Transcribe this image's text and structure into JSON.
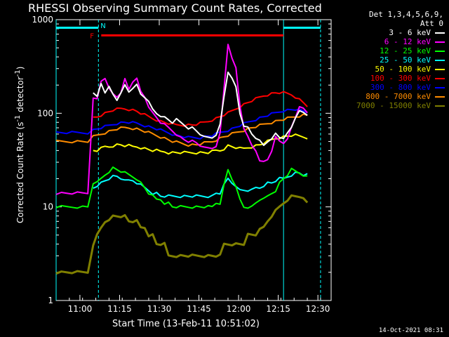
{
  "chart_data": {
    "type": "line",
    "title": "RHESSI Observing Summary Count Rates, Corrected",
    "xlabel": "Start Time (13-Feb-11 10:51:02)",
    "ylabel": "Corrected Count Rate (s",
    "ylabel_sup1": "-1",
    "ylabel_mid": " detector",
    "ylabel_sup2": "-1",
    "ylabel_end": ")",
    "yscale": "log",
    "ylim": [
      1,
      1000
    ],
    "y_ticks": [
      "1",
      "10",
      "100",
      "1000"
    ],
    "x_ticks": [
      "11:00",
      "11:15",
      "11:30",
      "11:45",
      "12:00",
      "12:15",
      "12:30"
    ],
    "x_tick_minutes": [
      9,
      24,
      39,
      54,
      69,
      84,
      99
    ],
    "xlim_minutes": [
      0,
      104
    ],
    "legend_header": "Det 1,3,4,5,6,9,",
    "legend_att": "Att 0",
    "flag_labels": {
      "f": "F",
      "n": "N"
    },
    "series": [
      {
        "name": "3 - 6 keV",
        "color": "#ffffff",
        "values": [
          null,
          null,
          null,
          null,
          null,
          null,
          null,
          160,
          150,
          210,
          170,
          190,
          160,
          140,
          160,
          200,
          170,
          190,
          200,
          160,
          150,
          130,
          110,
          100,
          95,
          90,
          85,
          80,
          85,
          80,
          75,
          70,
          70,
          65,
          60,
          55,
          55,
          55,
          60,
          75,
          150,
          280,
          230,
          190,
          100,
          75,
          70,
          60,
          55,
          50,
          45,
          50,
          55,
          60,
          55,
          55,
          60,
          70,
          90,
          110,
          100,
          95
        ]
      },
      {
        "name": "6 - 12 keV",
        "color": "#ff00ff",
        "values": [
          14,
          14,
          14,
          14,
          14,
          14,
          14,
          150,
          140,
          220,
          240,
          180,
          160,
          150,
          170,
          230,
          180,
          220,
          230,
          170,
          150,
          120,
          100,
          90,
          80,
          75,
          70,
          65,
          60,
          55,
          52,
          50,
          50,
          48,
          45,
          45,
          42,
          42,
          45,
          60,
          180,
          550,
          400,
          300,
          120,
          70,
          55,
          45,
          40,
          32,
          30,
          32,
          40,
          55,
          50,
          48,
          55,
          70,
          90,
          120,
          110,
          100
        ]
      },
      {
        "name": "12 - 25 keV",
        "color": "#00ff00",
        "values": [
          10,
          10,
          10,
          10,
          10,
          10,
          10,
          18,
          18,
          20,
          22,
          24,
          26,
          25,
          24,
          23,
          22,
          21,
          20,
          18,
          16,
          14,
          13,
          12,
          12,
          11,
          11,
          10,
          10,
          10,
          10,
          10,
          10,
          10,
          10,
          10,
          10,
          10,
          11,
          11,
          17,
          25,
          20,
          16,
          12,
          10,
          10,
          10,
          11,
          12,
          12,
          13,
          14,
          15,
          18,
          20,
          22,
          25,
          24,
          23,
          22,
          21
        ]
      },
      {
        "name": "25 - 50 keV",
        "color": "#00ffff",
        "values": [
          null,
          null,
          null,
          null,
          null,
          null,
          null,
          16,
          17,
          18,
          19,
          20,
          21,
          21,
          20,
          20,
          19,
          19,
          18,
          17,
          16,
          15,
          14,
          14,
          13,
          13,
          13,
          13,
          13,
          13,
          13,
          13,
          13,
          13,
          13,
          13,
          13,
          13,
          14,
          14,
          17,
          20,
          18,
          17,
          15,
          15,
          15,
          15,
          16,
          16,
          17,
          18,
          18,
          19,
          20,
          20,
          21,
          22,
          23,
          23,
          22,
          22
        ]
      },
      {
        "name": "50 - 100 keV",
        "color": "#ffff00",
        "values": [
          null,
          null,
          null,
          null,
          null,
          null,
          null,
          40,
          40,
          42,
          44,
          44,
          45,
          46,
          46,
          45,
          45,
          44,
          44,
          43,
          42,
          41,
          40,
          40,
          39,
          39,
          38,
          38,
          38,
          38,
          38,
          38,
          38,
          38,
          38,
          38,
          38,
          39,
          40,
          40,
          42,
          45,
          44,
          43,
          42,
          42,
          43,
          44,
          45,
          46,
          48,
          50,
          52,
          54,
          55,
          56,
          57,
          58,
          58,
          57,
          56,
          55
        ]
      },
      {
        "name": "100 - 300 keV",
        "color": "#ff0000",
        "values": [
          null,
          null,
          null,
          null,
          null,
          null,
          null,
          90,
          92,
          96,
          100,
          104,
          108,
          110,
          112,
          112,
          110,
          108,
          105,
          100,
          96,
          92,
          88,
          85,
          82,
          80,
          78,
          76,
          75,
          75,
          75,
          75,
          75,
          76,
          78,
          80,
          82,
          85,
          88,
          92,
          96,
          100,
          106,
          112,
          118,
          124,
          130,
          136,
          142,
          148,
          154,
          158,
          162,
          165,
          166,
          165,
          162,
          158,
          150,
          140,
          130,
          120
        ]
      },
      {
        "name": "300 - 800 keV",
        "color": "#0000ff",
        "values": [
          62,
          62,
          62,
          62,
          62,
          62,
          62,
          66,
          68,
          70,
          72,
          74,
          76,
          78,
          79,
          80,
          80,
          79,
          78,
          76,
          74,
          72,
          70,
          68,
          66,
          64,
          62,
          60,
          58,
          57,
          56,
          55,
          55,
          55,
          55,
          56,
          57,
          58,
          60,
          62,
          64,
          66,
          68,
          71,
          74,
          77,
          80,
          83,
          86,
          89,
          92,
          95,
          98,
          101,
          104,
          107,
          108,
          109,
          110,
          108,
          105,
          102
        ]
      },
      {
        "name": "800 - 7000 keV",
        "color": "#ff8c00",
        "values": [
          50,
          50,
          50,
          50,
          50,
          50,
          50,
          56,
          58,
          60,
          62,
          64,
          66,
          68,
          69,
          70,
          70,
          69,
          68,
          66,
          64,
          62,
          60,
          58,
          56,
          54,
          52,
          50,
          49,
          48,
          47,
          46,
          46,
          46,
          47,
          48,
          49,
          50,
          52,
          54,
          56,
          58,
          60,
          62,
          64,
          66,
          68,
          70,
          72,
          74,
          76,
          78,
          80,
          82,
          84,
          86,
          88,
          90,
          92,
          94,
          96,
          95
        ]
      },
      {
        "name": "7000 - 15000 keV",
        "color": "#808000",
        "values": [
          2,
          2,
          2,
          2,
          2,
          2,
          2,
          4,
          5,
          6,
          7,
          7,
          8,
          8,
          8,
          8,
          7,
          7,
          7,
          6,
          6,
          5,
          5,
          4,
          4,
          4,
          3,
          3,
          3,
          3,
          3,
          3,
          3,
          3,
          3,
          3,
          3,
          3,
          3,
          3,
          4,
          4,
          4,
          4,
          4,
          4,
          5,
          5,
          5,
          6,
          6,
          7,
          8,
          9,
          10,
          11,
          12,
          13,
          13,
          13,
          12,
          11
        ]
      }
    ],
    "x_minutes": [
      0,
      2,
      4,
      6,
      8,
      10,
      12,
      14,
      15.5,
      17,
      18.5,
      20,
      21.5,
      23,
      24.5,
      26,
      27.5,
      29,
      30.5,
      32,
      33.5,
      35,
      36.5,
      38,
      39.5,
      41,
      42.5,
      44,
      45.5,
      47,
      48.5,
      50,
      51.5,
      53,
      54.5,
      56,
      57.5,
      59,
      60.5,
      62,
      63.5,
      65,
      66.5,
      68,
      69.5,
      71,
      72.5,
      74,
      75.5,
      77,
      78.5,
      80,
      81.5,
      83,
      84.5,
      86,
      87.5,
      89,
      90.5,
      92,
      93.5,
      95
    ],
    "flare_bar": {
      "start_minutes": 16,
      "end_minutes": 86,
      "color": "#ff0000",
      "level": 680
    },
    "night_bars": [
      {
        "start_minutes": 0,
        "end_minutes": 16,
        "color": "#00ffff",
        "level": 820
      },
      {
        "start_minutes": 86,
        "end_minutes": 100,
        "color": "#00ffff",
        "level": 820
      }
    ],
    "vlines_minutes": [
      {
        "at": 0,
        "color": "#00ffff",
        "solid": true
      },
      {
        "at": 16,
        "color": "#00ffff",
        "solid": false
      },
      {
        "at": 86,
        "color": "#00ffff",
        "solid": true
      },
      {
        "at": 100,
        "color": "#00ffff",
        "solid": false
      }
    ],
    "legend_placement": "right",
    "grid": false
  },
  "datestamp": "14-Oct-2021 08:31"
}
